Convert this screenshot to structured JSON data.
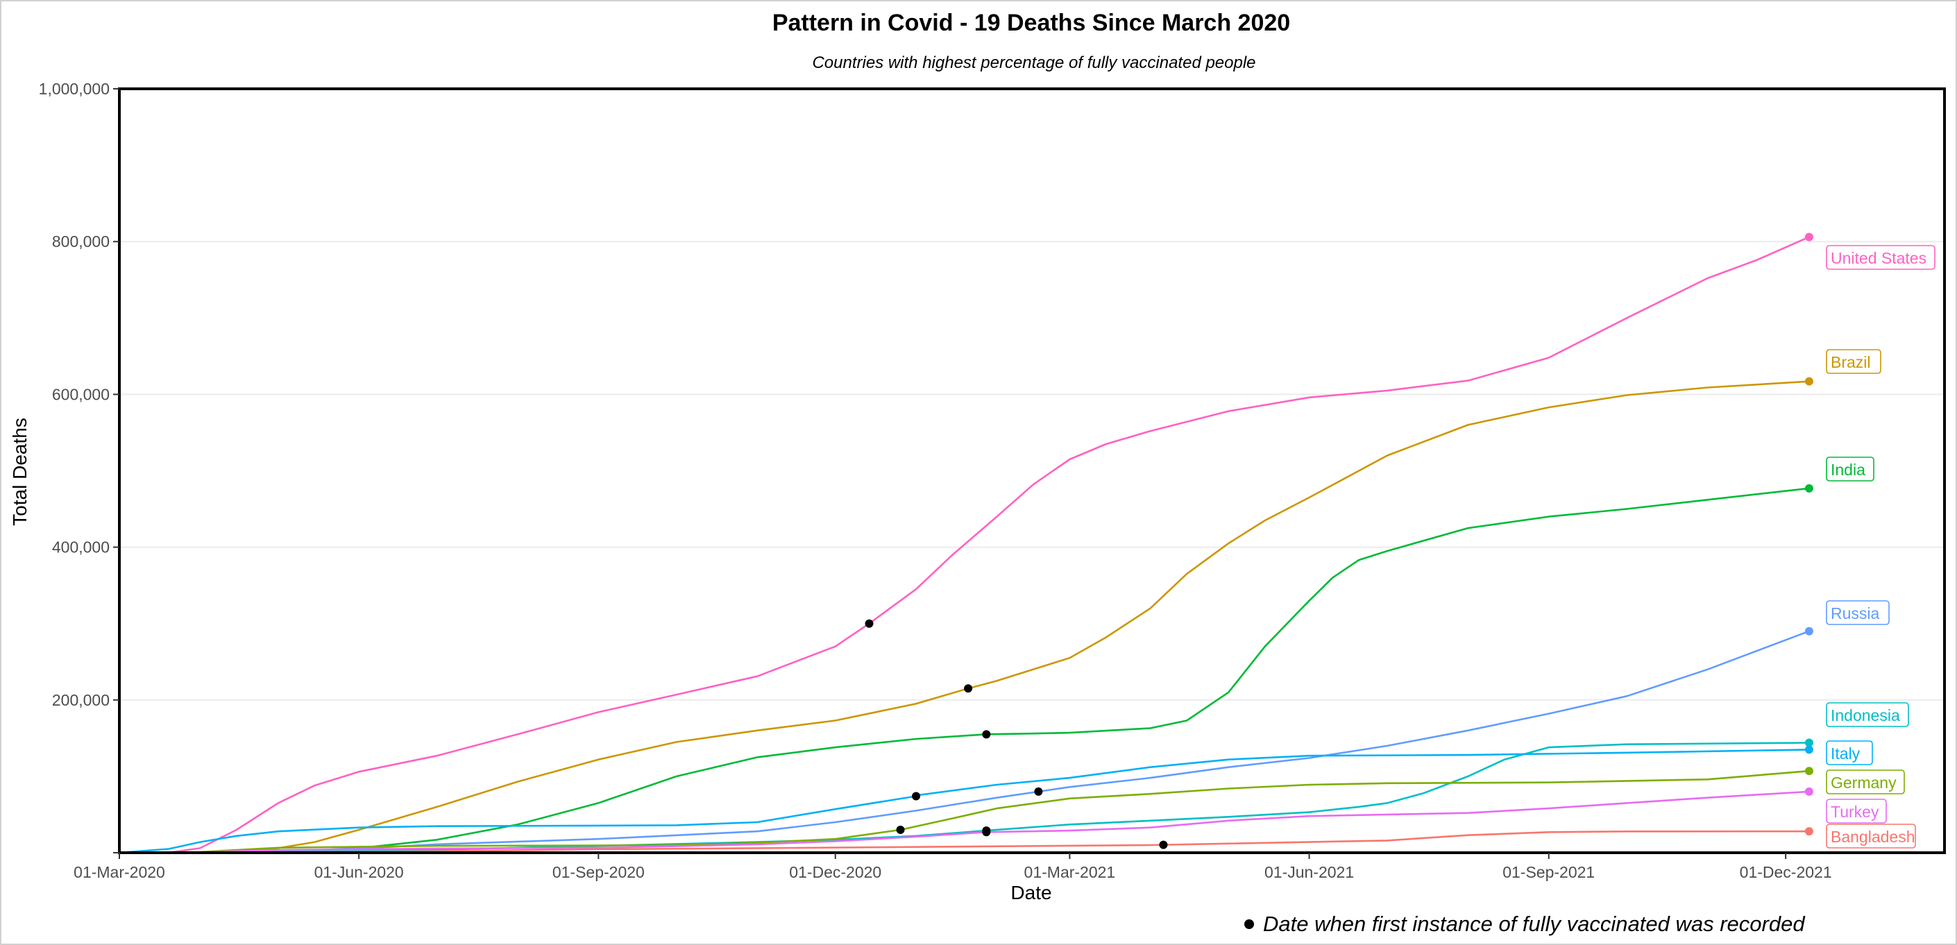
{
  "chart_data": {
    "type": "line",
    "title": "Pattern in Covid - 19 Deaths Since March 2020",
    "subtitle": "Countries with highest percentage of fully vaccinated people",
    "xlabel": "Date",
    "ylabel": "Total Deaths",
    "xlim": [
      "2020-03-01",
      "2022-01-31"
    ],
    "ylim": [
      0,
      1000000
    ],
    "x_ticks": [
      {
        "date": "2020-03-01",
        "label": "01-Mar-2020"
      },
      {
        "date": "2020-06-01",
        "label": "01-Jun-2020"
      },
      {
        "date": "2020-09-01",
        "label": "01-Sep-2020"
      },
      {
        "date": "2020-12-01",
        "label": "01-Dec-2020"
      },
      {
        "date": "2021-03-01",
        "label": "01-Mar-2021"
      },
      {
        "date": "2021-06-01",
        "label": "01-Jun-2021"
      },
      {
        "date": "2021-09-01",
        "label": "01-Sep-2021"
      },
      {
        "date": "2021-12-01",
        "label": "01-Dec-2021"
      }
    ],
    "y_ticks": [
      {
        "value": 0,
        "label": ""
      },
      {
        "value": 200000,
        "label": "200,000"
      },
      {
        "value": 400000,
        "label": "400,000"
      },
      {
        "value": 600000,
        "label": "600,000"
      },
      {
        "value": 800000,
        "label": "800,000"
      },
      {
        "value": 1000000,
        "label": "1,000,000"
      }
    ],
    "grid": "horizontal",
    "legend": "direct labels at line ends (right)",
    "annotation": {
      "text": "Date when first instance of fully vaccinated was recorded",
      "marker": "black dot"
    },
    "series": [
      {
        "name": "United States",
        "color": "#FF61C3",
        "points": [
          [
            "2020-03-01",
            0
          ],
          [
            "2020-03-20",
            200
          ],
          [
            "2020-04-01",
            6000
          ],
          [
            "2020-04-15",
            30000
          ],
          [
            "2020-05-01",
            65000
          ],
          [
            "2020-05-15",
            88000
          ],
          [
            "2020-06-01",
            106000
          ],
          [
            "2020-07-01",
            127000
          ],
          [
            "2020-08-01",
            155000
          ],
          [
            "2020-09-01",
            184000
          ],
          [
            "2020-10-01",
            207000
          ],
          [
            "2020-11-01",
            231000
          ],
          [
            "2020-12-01",
            270000
          ],
          [
            "2020-12-14",
            300000
          ],
          [
            "2021-01-01",
            345000
          ],
          [
            "2021-01-15",
            390000
          ],
          [
            "2021-02-01",
            440000
          ],
          [
            "2021-02-15",
            482000
          ],
          [
            "2021-03-01",
            515000
          ],
          [
            "2021-03-15",
            535000
          ],
          [
            "2021-04-01",
            552000
          ],
          [
            "2021-05-01",
            578000
          ],
          [
            "2021-06-01",
            596000
          ],
          [
            "2021-07-01",
            605000
          ],
          [
            "2021-08-01",
            618000
          ],
          [
            "2021-09-01",
            648000
          ],
          [
            "2021-10-01",
            700000
          ],
          [
            "2021-11-01",
            752000
          ],
          [
            "2021-11-20",
            776000
          ],
          [
            "2021-12-10",
            806000
          ]
        ],
        "vaccination_date": "2020-12-14"
      },
      {
        "name": "Brazil",
        "color": "#CD9600",
        "points": [
          [
            "2020-03-01",
            0
          ],
          [
            "2020-04-01",
            300
          ],
          [
            "2020-05-01",
            6000
          ],
          [
            "2020-05-15",
            14000
          ],
          [
            "2020-06-01",
            30000
          ],
          [
            "2020-07-01",
            60000
          ],
          [
            "2020-08-01",
            93000
          ],
          [
            "2020-09-01",
            122000
          ],
          [
            "2020-10-01",
            145000
          ],
          [
            "2020-11-01",
            160000
          ],
          [
            "2020-12-01",
            173000
          ],
          [
            "2021-01-01",
            195000
          ],
          [
            "2021-01-21",
            215000
          ],
          [
            "2021-02-01",
            225000
          ],
          [
            "2021-03-01",
            255000
          ],
          [
            "2021-03-15",
            282000
          ],
          [
            "2021-04-01",
            320000
          ],
          [
            "2021-04-15",
            365000
          ],
          [
            "2021-05-01",
            405000
          ],
          [
            "2021-05-15",
            435000
          ],
          [
            "2021-06-01",
            465000
          ],
          [
            "2021-07-01",
            520000
          ],
          [
            "2021-08-01",
            560000
          ],
          [
            "2021-09-01",
            583000
          ],
          [
            "2021-10-01",
            599000
          ],
          [
            "2021-11-01",
            609000
          ],
          [
            "2021-12-10",
            617000
          ]
        ],
        "vaccination_date": "2021-01-21"
      },
      {
        "name": "India",
        "color": "#00BA38",
        "points": [
          [
            "2020-03-01",
            0
          ],
          [
            "2020-04-15",
            400
          ],
          [
            "2020-05-01",
            1500
          ],
          [
            "2020-06-01",
            6000
          ],
          [
            "2020-07-01",
            17000
          ],
          [
            "2020-08-01",
            37000
          ],
          [
            "2020-09-01",
            65000
          ],
          [
            "2020-10-01",
            100000
          ],
          [
            "2020-11-01",
            125000
          ],
          [
            "2020-12-01",
            138000
          ],
          [
            "2021-01-01",
            149000
          ],
          [
            "2021-01-28",
            155000
          ],
          [
            "2021-02-15",
            156000
          ],
          [
            "2021-03-01",
            157000
          ],
          [
            "2021-04-01",
            163000
          ],
          [
            "2021-04-15",
            173000
          ],
          [
            "2021-05-01",
            210000
          ],
          [
            "2021-05-15",
            270000
          ],
          [
            "2021-06-01",
            330000
          ],
          [
            "2021-06-10",
            360000
          ],
          [
            "2021-06-20",
            383000
          ],
          [
            "2021-07-01",
            395000
          ],
          [
            "2021-08-01",
            425000
          ],
          [
            "2021-09-01",
            440000
          ],
          [
            "2021-10-01",
            450000
          ],
          [
            "2021-11-01",
            462000
          ],
          [
            "2021-12-10",
            477000
          ]
        ],
        "vaccination_date": "2021-01-28"
      },
      {
        "name": "Russia",
        "color": "#619CFF",
        "points": [
          [
            "2020-03-01",
            0
          ],
          [
            "2020-05-01",
            1500
          ],
          [
            "2020-06-01",
            5500
          ],
          [
            "2020-07-01",
            11000
          ],
          [
            "2020-09-01",
            18000
          ],
          [
            "2020-11-01",
            28000
          ],
          [
            "2020-12-01",
            40000
          ],
          [
            "2021-01-01",
            55000
          ],
          [
            "2021-02-01",
            72000
          ],
          [
            "2021-02-17",
            80000
          ],
          [
            "2021-03-01",
            86000
          ],
          [
            "2021-04-01",
            98000
          ],
          [
            "2021-05-01",
            112000
          ],
          [
            "2021-06-01",
            124000
          ],
          [
            "2021-07-01",
            140000
          ],
          [
            "2021-08-01",
            160000
          ],
          [
            "2021-09-01",
            182000
          ],
          [
            "2021-10-01",
            205000
          ],
          [
            "2021-11-01",
            240000
          ],
          [
            "2021-12-10",
            290000
          ]
        ],
        "vaccination_date": "2021-02-17"
      },
      {
        "name": "Indonesia",
        "color": "#00BFC4",
        "points": [
          [
            "2020-03-01",
            0
          ],
          [
            "2020-05-01",
            1000
          ],
          [
            "2020-07-01",
            4000
          ],
          [
            "2020-09-01",
            9000
          ],
          [
            "2020-11-01",
            14000
          ],
          [
            "2020-12-01",
            17000
          ],
          [
            "2021-01-01",
            22000
          ],
          [
            "2021-01-28",
            29000
          ],
          [
            "2021-03-01",
            37000
          ],
          [
            "2021-04-01",
            42000
          ],
          [
            "2021-05-01",
            47000
          ],
          [
            "2021-06-01",
            53000
          ],
          [
            "2021-06-20",
            60000
          ],
          [
            "2021-07-01",
            65000
          ],
          [
            "2021-07-15",
            78000
          ],
          [
            "2021-08-01",
            100000
          ],
          [
            "2021-08-15",
            122000
          ],
          [
            "2021-09-01",
            138000
          ],
          [
            "2021-10-01",
            142000
          ],
          [
            "2021-12-10",
            144000
          ]
        ],
        "vaccination_date": "2021-01-28"
      },
      {
        "name": "Italy",
        "color": "#00B0F6",
        "points": [
          [
            "2020-03-01",
            0
          ],
          [
            "2020-03-20",
            5000
          ],
          [
            "2020-04-01",
            14000
          ],
          [
            "2020-04-15",
            22000
          ],
          [
            "2020-05-01",
            28000
          ],
          [
            "2020-06-01",
            33000
          ],
          [
            "2020-07-01",
            34800
          ],
          [
            "2020-09-01",
            35500
          ],
          [
            "2020-10-01",
            36000
          ],
          [
            "2020-11-01",
            40000
          ],
          [
            "2020-12-01",
            57000
          ],
          [
            "2021-01-01",
            74000
          ],
          [
            "2021-01-01",
            75000
          ],
          [
            "2021-02-01",
            89000
          ],
          [
            "2021-03-01",
            98000
          ],
          [
            "2021-04-01",
            112000
          ],
          [
            "2021-05-01",
            122000
          ],
          [
            "2021-06-01",
            127000
          ],
          [
            "2021-08-01",
            128000
          ],
          [
            "2021-10-01",
            131000
          ],
          [
            "2021-12-10",
            135000
          ]
        ],
        "vaccination_date": "2021-01-01"
      },
      {
        "name": "Germany",
        "color": "#7CAE00",
        "points": [
          [
            "2020-03-01",
            0
          ],
          [
            "2020-04-01",
            1000
          ],
          [
            "2020-05-01",
            6500
          ],
          [
            "2020-07-01",
            9000
          ],
          [
            "2020-09-01",
            9500
          ],
          [
            "2020-10-01",
            10000
          ],
          [
            "2020-11-01",
            13000
          ],
          [
            "2020-12-01",
            18000
          ],
          [
            "2020-12-26",
            30000
          ],
          [
            "2021-01-15",
            45000
          ],
          [
            "2021-02-01",
            58000
          ],
          [
            "2021-03-01",
            71000
          ],
          [
            "2021-04-01",
            77000
          ],
          [
            "2021-05-01",
            84000
          ],
          [
            "2021-06-01",
            89000
          ],
          [
            "2021-07-01",
            91000
          ],
          [
            "2021-09-01",
            92000
          ],
          [
            "2021-11-01",
            96000
          ],
          [
            "2021-12-10",
            107000
          ]
        ],
        "vaccination_date": "2020-12-26"
      },
      {
        "name": "Turkey",
        "color": "#E76BF3",
        "points": [
          [
            "2020-03-01",
            0
          ],
          [
            "2020-04-01",
            500
          ],
          [
            "2020-05-01",
            3500
          ],
          [
            "2020-07-01",
            5500
          ],
          [
            "2020-09-01",
            6500
          ],
          [
            "2020-10-01",
            8500
          ],
          [
            "2020-11-01",
            11000
          ],
          [
            "2020-12-01",
            15000
          ],
          [
            "2021-01-01",
            21000
          ],
          [
            "2021-01-28",
            27000
          ],
          [
            "2021-03-01",
            29000
          ],
          [
            "2021-04-01",
            33000
          ],
          [
            "2021-05-01",
            42000
          ],
          [
            "2021-06-01",
            48000
          ],
          [
            "2021-08-01",
            52000
          ],
          [
            "2021-09-01",
            58000
          ],
          [
            "2021-10-01",
            65000
          ],
          [
            "2021-11-01",
            72000
          ],
          [
            "2021-12-10",
            80000
          ]
        ],
        "vaccination_date": "2021-01-28"
      },
      {
        "name": "Bangladesh",
        "color": "#F8766D",
        "points": [
          [
            "2020-03-01",
            0
          ],
          [
            "2020-05-01",
            300
          ],
          [
            "2020-07-01",
            2000
          ],
          [
            "2020-09-01",
            4500
          ],
          [
            "2020-11-01",
            6000
          ],
          [
            "2021-01-01",
            7500
          ],
          [
            "2021-04-01",
            10000
          ],
          [
            "2021-05-01",
            12000
          ],
          [
            "2021-07-01",
            16000
          ],
          [
            "2021-08-01",
            23000
          ],
          [
            "2021-09-01",
            27000
          ],
          [
            "2021-10-01",
            27900
          ],
          [
            "2021-12-10",
            28000
          ]
        ],
        "vaccination_date": "2021-04-06"
      }
    ]
  }
}
